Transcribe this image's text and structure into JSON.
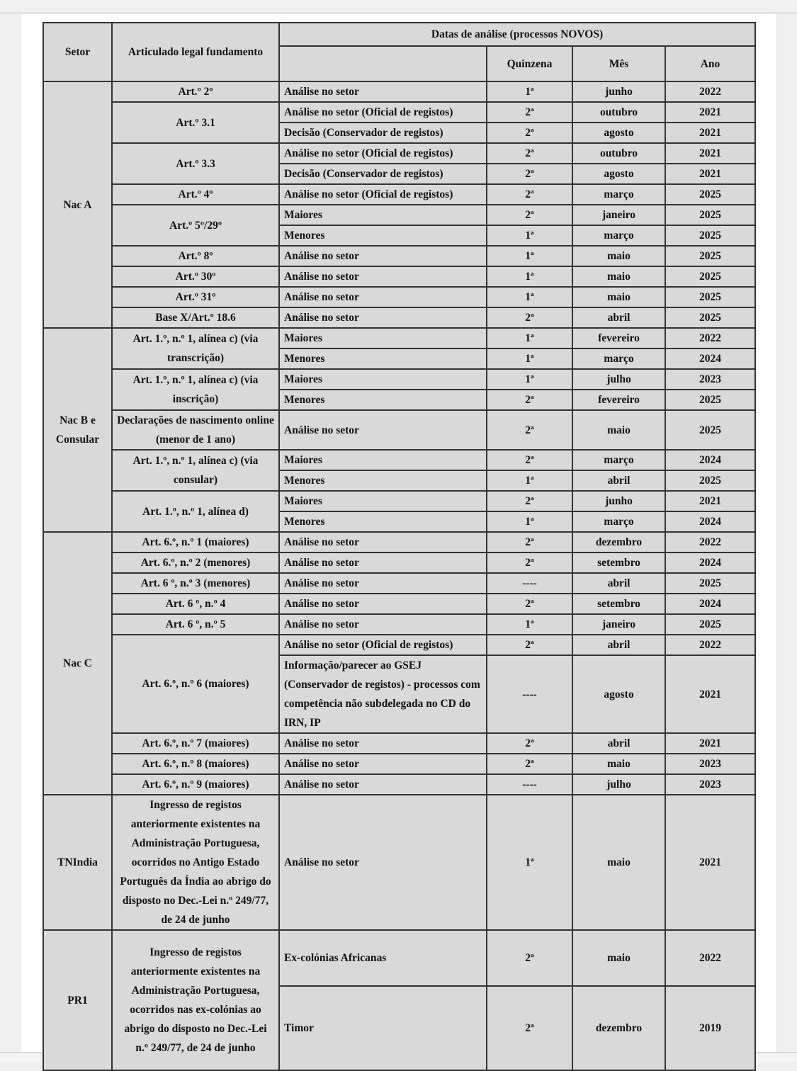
{
  "header": {
    "setor": "Setor",
    "articulado": "Articulado legal fundamento",
    "datas": "Datas de análise (processos NOVOS)",
    "quinzena": "Quinzena",
    "mes": "Mês",
    "ano": "Ano"
  },
  "sectors": [
    {
      "name": "Nac A",
      "groups": [
        {
          "article": "Art.º 2º",
          "entries": [
            {
              "desc": "Análise no setor",
              "quinzena": "1ª",
              "mes": "junho",
              "ano": "2022"
            }
          ]
        },
        {
          "article": "Art.º 3.1",
          "entries": [
            {
              "desc": "Análise no setor (Oficial de registos)",
              "quinzena": "2ª",
              "mes": "outubro",
              "ano": "2021"
            },
            {
              "desc": "Decisão (Conservador de registos)",
              "quinzena": "2ª",
              "mes": "agosto",
              "ano": "2021"
            }
          ]
        },
        {
          "article": "Art.º 3.3",
          "entries": [
            {
              "desc": "Análise no setor (Oficial de registos)",
              "quinzena": "2ª",
              "mes": "outubro",
              "ano": "2021"
            },
            {
              "desc": "Decisão (Conservador de registos)",
              "quinzena": "2ª",
              "mes": "agosto",
              "ano": "2021"
            }
          ]
        },
        {
          "article": "Art.º 4º",
          "entries": [
            {
              "desc": "Análise no setor (Oficial de registos)",
              "quinzena": "2ª",
              "mes": "março",
              "ano": "2025"
            }
          ]
        },
        {
          "article": "Art.º 5º/29º",
          "entries": [
            {
              "desc": "Maiores",
              "quinzena": "2ª",
              "mes": "janeiro",
              "ano": "2025"
            },
            {
              "desc": "Menores",
              "quinzena": "1ª",
              "mes": "março",
              "ano": "2025"
            }
          ]
        },
        {
          "article": "Art.º 8º",
          "entries": [
            {
              "desc": "Análise no setor",
              "quinzena": "1ª",
              "mes": "maio",
              "ano": "2025"
            }
          ]
        },
        {
          "article": "Art.º 30º",
          "entries": [
            {
              "desc": "Análise no setor",
              "quinzena": "1ª",
              "mes": "maio",
              "ano": "2025"
            }
          ]
        },
        {
          "article": "Art.º 31º",
          "entries": [
            {
              "desc": "Análise no setor",
              "quinzena": "1ª",
              "mes": "maio",
              "ano": "2025"
            }
          ]
        },
        {
          "article": "Base X/Art.º 18.6",
          "entries": [
            {
              "desc": "Análise no setor",
              "quinzena": "2ª",
              "mes": "abril",
              "ano": "2025"
            }
          ]
        }
      ]
    },
    {
      "name": "Nac B e Consular",
      "groups": [
        {
          "article": "Art. 1.º, n.º 1, alínea c) (via transcrição)",
          "entries": [
            {
              "desc": "Maiores",
              "quinzena": "1ª",
              "mes": "fevereiro",
              "ano": "2022"
            },
            {
              "desc": "Menores",
              "quinzena": "1ª",
              "mes": "março",
              "ano": "2024"
            }
          ]
        },
        {
          "article": "Art. 1.º, n.º 1, alínea c) (via inscrição)",
          "entries": [
            {
              "desc": "Maiores",
              "quinzena": "1ª",
              "mes": "julho",
              "ano": "2023"
            },
            {
              "desc": "Menores",
              "quinzena": "2ª",
              "mes": "fevereiro",
              "ano": "2025"
            }
          ]
        },
        {
          "article": "Declarações de nascimento online (menor de 1 ano)",
          "entries": [
            {
              "desc": "Análise no setor",
              "quinzena": "2ª",
              "mes": "maio",
              "ano": "2025"
            }
          ]
        },
        {
          "article": "Art. 1.º, n.º 1, alínea c) (via consular)",
          "entries": [
            {
              "desc": "Maiores",
              "quinzena": "2ª",
              "mes": "março",
              "ano": "2024"
            },
            {
              "desc": "Menores",
              "quinzena": "1ª",
              "mes": "abril",
              "ano": "2025"
            }
          ]
        },
        {
          "article": "Art. 1.º, n.º 1, alínea d)",
          "entries": [
            {
              "desc": "Maiores",
              "quinzena": "2ª",
              "mes": "junho",
              "ano": "2021"
            },
            {
              "desc": "Menores",
              "quinzena": "1ª",
              "mes": "março",
              "ano": "2024"
            }
          ]
        }
      ]
    },
    {
      "name": "Nac C",
      "groups": [
        {
          "article": "Art. 6.º, n.º 1 (maiores)",
          "entries": [
            {
              "desc": "Análise no setor",
              "quinzena": "2ª",
              "mes": "dezembro",
              "ano": "2022"
            }
          ]
        },
        {
          "article": "Art. 6.º, n.º 2 (menores)",
          "entries": [
            {
              "desc": "Análise no setor",
              "quinzena": "2ª",
              "mes": "setembro",
              "ano": "2024"
            }
          ]
        },
        {
          "article": "Art. 6 º, n.º 3 (menores)",
          "entries": [
            {
              "desc": "Análise no setor",
              "quinzena": "----",
              "mes": "abril",
              "ano": "2025"
            }
          ]
        },
        {
          "article": "Art. 6 º, n.º 4",
          "entries": [
            {
              "desc": "Análise no setor",
              "quinzena": "2ª",
              "mes": "setembro",
              "ano": "2024"
            }
          ]
        },
        {
          "article": "Art. 6 º, n.º 5",
          "entries": [
            {
              "desc": "Análise no setor",
              "quinzena": "1ª",
              "mes": "janeiro",
              "ano": "2025"
            }
          ]
        },
        {
          "article": "Art. 6.º, n.º 6 (maiores)",
          "entries": [
            {
              "desc": "Análise no setor (Oficial de registos)",
              "quinzena": "2ª",
              "mes": "abril",
              "ano": "2022"
            },
            {
              "desc": "Informação/parecer ao GSEJ (Conservador de registos) - processos com competência não subdelegada no CD do IRN, IP",
              "quinzena": "----",
              "mes": "agosto",
              "ano": "2021"
            }
          ]
        },
        {
          "article": "Art. 6.º, n.º 7 (maiores)",
          "entries": [
            {
              "desc": "Análise no setor",
              "quinzena": "2ª",
              "mes": "abril",
              "ano": "2021"
            }
          ]
        },
        {
          "article": "Art. 6.º, n.º 8 (maiores)",
          "entries": [
            {
              "desc": "Análise no setor",
              "quinzena": "2ª",
              "mes": "maio",
              "ano": "2023"
            }
          ]
        },
        {
          "article": "Art. 6.º, n.º 9 (maiores)",
          "entries": [
            {
              "desc": "Análise no setor",
              "quinzena": "----",
              "mes": "julho",
              "ano": "2023"
            }
          ]
        }
      ]
    },
    {
      "name": "TNIndia",
      "groups": [
        {
          "article": "Ingresso de registos anteriormente existentes na Administração Portuguesa, ocorridos no Antigo Estado Português da Índia ao abrigo do disposto no Dec.-Lei n.º 249/77, de 24 de junho",
          "entries": [
            {
              "desc": "Análise no setor",
              "quinzena": "1ª",
              "mes": "maio",
              "ano": "2021"
            }
          ]
        }
      ]
    },
    {
      "name": "PR1",
      "groups": [
        {
          "article": "Ingresso de registos anteriormente existentes na Administração Portuguesa, ocorridos nas ex-colónias ao abrigo do disposto no Dec.-Lei n.º 249/77, de 24 de junho",
          "entries": [
            {
              "desc": "Ex-colónias Africanas",
              "quinzena": "2ª",
              "mes": "maio",
              "ano": "2022"
            },
            {
              "desc": "Timor",
              "quinzena": "2ª",
              "mes": "dezembro",
              "ano": "2019"
            }
          ]
        }
      ]
    }
  ]
}
